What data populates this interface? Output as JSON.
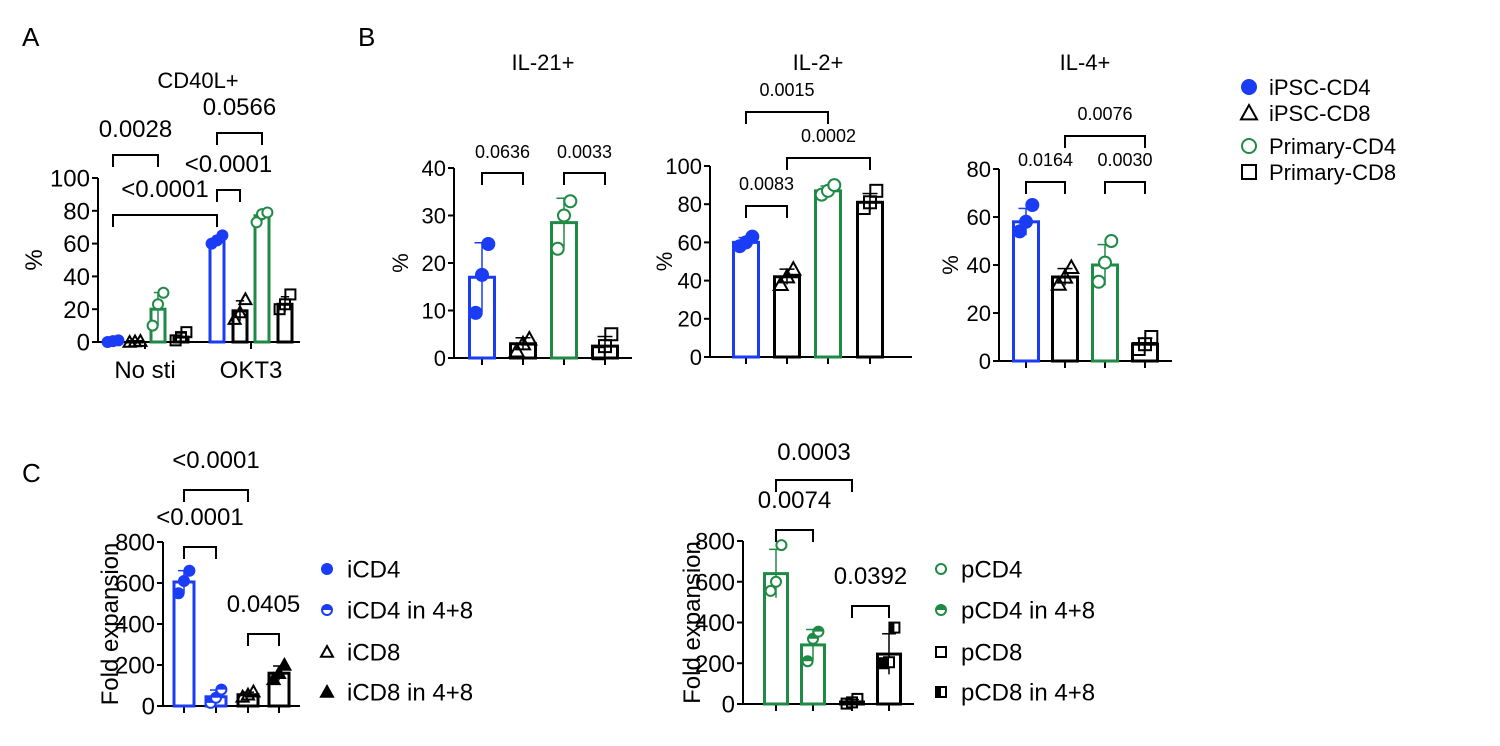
{
  "panel_labels": [
    "A",
    "B",
    "C"
  ],
  "colors": {
    "ipsc_cd4": "#1a3cf5",
    "primary_cd4": "#1f8a45",
    "cd8": "#000000"
  },
  "legend_b": [
    {
      "label": "iPSC-CD4",
      "marker": "filled-circle",
      "color": "#1a3cf5"
    },
    {
      "label": "iPSC-CD8",
      "marker": "open-triangle",
      "color": "#000000"
    },
    {
      "label": "Primary-CD4",
      "marker": "open-circle",
      "color": "#1f8a45"
    },
    {
      "label": "Primary-CD8",
      "marker": "open-square",
      "color": "#000000"
    }
  ],
  "legend_c_left": [
    {
      "label": "iCD4",
      "marker": "filled-circle",
      "color": "#1a3cf5"
    },
    {
      "label": "iCD4 in 4+8",
      "marker": "half-circle",
      "color": "#1a3cf5"
    },
    {
      "label": "iCD8",
      "marker": "open-triangle",
      "color": "#000000"
    },
    {
      "label": "iCD8 in 4+8",
      "marker": "filled-triangle",
      "color": "#000000"
    }
  ],
  "legend_c_right": [
    {
      "label": "pCD4",
      "marker": "open-circle",
      "color": "#1f8a45"
    },
    {
      "label": "pCD4 in 4+8",
      "marker": "half-circle",
      "color": "#1f8a45"
    },
    {
      "label": "pCD8",
      "marker": "open-square",
      "color": "#000000"
    },
    {
      "label": "pCD8 in 4+8",
      "marker": "half-square",
      "color": "#000000"
    }
  ],
  "chart_data": [
    {
      "type": "bar",
      "panel": "A",
      "title": "CD40L+",
      "ylabel": "%",
      "ylim": [
        0,
        100
      ],
      "yticks": [
        "0",
        "20",
        "40",
        "60",
        "80",
        "100"
      ],
      "categories": [
        "No sti",
        "OKT3"
      ],
      "bars": [
        {
          "group": "No sti",
          "series": "iPSC-CD4",
          "value": 0.5,
          "points": [
            0,
            0.5,
            1
          ],
          "marker": "filled-circle",
          "color": "#1a3cf5"
        },
        {
          "group": "No sti",
          "series": "iPSC-CD8",
          "value": 0.3,
          "points": [
            0,
            0.3,
            0.6
          ],
          "marker": "open-triangle",
          "color": "#000000"
        },
        {
          "group": "No sti",
          "series": "Primary-CD4",
          "value": 20,
          "points": [
            10,
            23,
            30
          ],
          "marker": "open-circle",
          "color": "#1f8a45"
        },
        {
          "group": "No sti",
          "series": "Primary-CD8",
          "value": 3,
          "points": [
            1,
            3,
            6
          ],
          "marker": "open-square",
          "color": "#000000"
        },
        {
          "group": "OKT3",
          "series": "iPSC-CD4",
          "value": 62,
          "points": [
            60,
            62,
            65
          ],
          "marker": "filled-circle",
          "color": "#1a3cf5"
        },
        {
          "group": "OKT3",
          "series": "iPSC-CD8",
          "value": 19,
          "points": [
            14,
            18,
            26
          ],
          "marker": "open-triangle",
          "color": "#000000"
        },
        {
          "group": "OKT3",
          "series": "Primary-CD4",
          "value": 77,
          "points": [
            73,
            78,
            79
          ],
          "marker": "open-circle",
          "color": "#1f8a45"
        },
        {
          "group": "OKT3",
          "series": "Primary-CD8",
          "value": 23,
          "points": [
            20,
            23,
            29
          ],
          "marker": "open-square",
          "color": "#000000"
        }
      ],
      "comparisons": [
        {
          "from": 0,
          "to": 2,
          "p": "0.0028"
        },
        {
          "from": 0,
          "to": 4,
          "p": "<0.0001"
        },
        {
          "from": 4,
          "to": 5,
          "p": "<0.0001"
        },
        {
          "from": 4,
          "to": 6,
          "p": "0.0566"
        }
      ]
    },
    {
      "type": "bar",
      "panel": "B",
      "title": "IL-21+",
      "ylabel": "%",
      "ylim": [
        0,
        40
      ],
      "yticks": [
        "0",
        "10",
        "20",
        "30",
        "40"
      ],
      "bars": [
        {
          "series": "iPSC-CD4",
          "value": 17,
          "points": [
            9.5,
            17.5,
            24
          ],
          "marker": "filled-circle",
          "color": "#1a3cf5"
        },
        {
          "series": "iPSC-CD8",
          "value": 3,
          "points": [
            1.5,
            3,
            4
          ],
          "marker": "open-triangle",
          "color": "#000000"
        },
        {
          "series": "Primary-CD4",
          "value": 28.5,
          "points": [
            23,
            30,
            33
          ],
          "marker": "open-circle",
          "color": "#1f8a45"
        },
        {
          "series": "Primary-CD8",
          "value": 2.5,
          "points": [
            1,
            2.5,
            5
          ],
          "marker": "open-square",
          "color": "#000000"
        }
      ],
      "comparisons": [
        {
          "from": 0,
          "to": 1,
          "p": "0.0636"
        },
        {
          "from": 2,
          "to": 3,
          "p": "0.0033"
        }
      ]
    },
    {
      "type": "bar",
      "panel": "B",
      "title": "IL-2+",
      "ylabel": "%",
      "ylim": [
        0,
        100
      ],
      "yticks": [
        "0",
        "20",
        "40",
        "60",
        "80",
        "100"
      ],
      "bars": [
        {
          "series": "iPSC-CD4",
          "value": 60,
          "points": [
            58,
            60,
            63
          ],
          "marker": "filled-circle",
          "color": "#1a3cf5"
        },
        {
          "series": "iPSC-CD8",
          "value": 42,
          "points": [
            38,
            42,
            46
          ],
          "marker": "open-triangle",
          "color": "#000000"
        },
        {
          "series": "Primary-CD4",
          "value": 87,
          "points": [
            85,
            87,
            90
          ],
          "marker": "open-circle",
          "color": "#1f8a45"
        },
        {
          "series": "Primary-CD8",
          "value": 81,
          "points": [
            78,
            81,
            87
          ],
          "marker": "open-square",
          "color": "#000000"
        }
      ],
      "comparisons": [
        {
          "from": 0,
          "to": 1,
          "p": "0.0083"
        },
        {
          "from": 1,
          "to": 3,
          "p": "0.0002"
        },
        {
          "from": 0,
          "to": 2,
          "p": "0.0015"
        }
      ]
    },
    {
      "type": "bar",
      "panel": "B",
      "title": "IL-4+",
      "ylabel": "%",
      "ylim": [
        0,
        80
      ],
      "yticks": [
        "0",
        "20",
        "40",
        "60",
        "80"
      ],
      "bars": [
        {
          "series": "iPSC-CD4",
          "value": 58,
          "points": [
            54,
            58,
            65
          ],
          "marker": "filled-circle",
          "color": "#1a3cf5"
        },
        {
          "series": "iPSC-CD8",
          "value": 35,
          "points": [
            32,
            35,
            39
          ],
          "marker": "open-triangle",
          "color": "#000000"
        },
        {
          "series": "Primary-CD4",
          "value": 40,
          "points": [
            33,
            41,
            50
          ],
          "marker": "open-circle",
          "color": "#1f8a45"
        },
        {
          "series": "Primary-CD8",
          "value": 7,
          "points": [
            5,
            7,
            10
          ],
          "marker": "open-square",
          "color": "#000000"
        }
      ],
      "comparisons": [
        {
          "from": 0,
          "to": 1,
          "p": "0.0164"
        },
        {
          "from": 2,
          "to": 3,
          "p": "0.0030"
        },
        {
          "from": 1,
          "to": 3,
          "p": "0.0076"
        }
      ]
    },
    {
      "type": "bar",
      "panel": "C",
      "title": "",
      "ylabel": "Fold expansion",
      "ylim": [
        0,
        800
      ],
      "yticks": [
        "0",
        "200",
        "400",
        "600",
        "800"
      ],
      "bars": [
        {
          "series": "iCD4",
          "value": 605,
          "points": [
            550,
            610,
            660
          ],
          "marker": "filled-circle",
          "color": "#1a3cf5"
        },
        {
          "series": "iCD4 in 4+8",
          "value": 45,
          "points": [
            15,
            40,
            80
          ],
          "marker": "half-circle",
          "color": "#1a3cf5"
        },
        {
          "series": "iCD8",
          "value": 55,
          "points": [
            45,
            55,
            70
          ],
          "marker": "open-triangle",
          "color": "#000000"
        },
        {
          "series": "iCD8 in 4+8",
          "value": 160,
          "points": [
            130,
            160,
            200
          ],
          "marker": "filled-triangle",
          "color": "#000000"
        }
      ],
      "comparisons": [
        {
          "from": 0,
          "to": 1,
          "p": "<0.0001"
        },
        {
          "from": 2,
          "to": 3,
          "p": "0.0405"
        },
        {
          "from": 0,
          "to": 2,
          "p": "<0.0001"
        }
      ]
    },
    {
      "type": "bar",
      "panel": "C",
      "title": "",
      "ylabel": "Fold expansion",
      "ylim": [
        0,
        800
      ],
      "yticks": [
        "0",
        "200",
        "400",
        "600",
        "800"
      ],
      "bars": [
        {
          "series": "pCD4",
          "value": 640,
          "points": [
            555,
            600,
            780
          ],
          "marker": "open-circle",
          "color": "#1f8a45"
        },
        {
          "series": "pCD4 in 4+8",
          "value": 290,
          "points": [
            210,
            320,
            355
          ],
          "marker": "half-circle",
          "color": "#1f8a45"
        },
        {
          "series": "pCD8",
          "value": 10,
          "points": [
            2,
            8,
            25
          ],
          "marker": "open-square",
          "color": "#000000"
        },
        {
          "series": "pCD8 in 4+8",
          "value": 245,
          "points": [
            200,
            205,
            375
          ],
          "marker": "half-square",
          "color": "#000000"
        }
      ],
      "comparisons": [
        {
          "from": 0,
          "to": 1,
          "p": "0.0074"
        },
        {
          "from": 0,
          "to": 2,
          "p": "0.0003"
        },
        {
          "from": 2,
          "to": 3,
          "p": "0.0392"
        }
      ]
    }
  ]
}
